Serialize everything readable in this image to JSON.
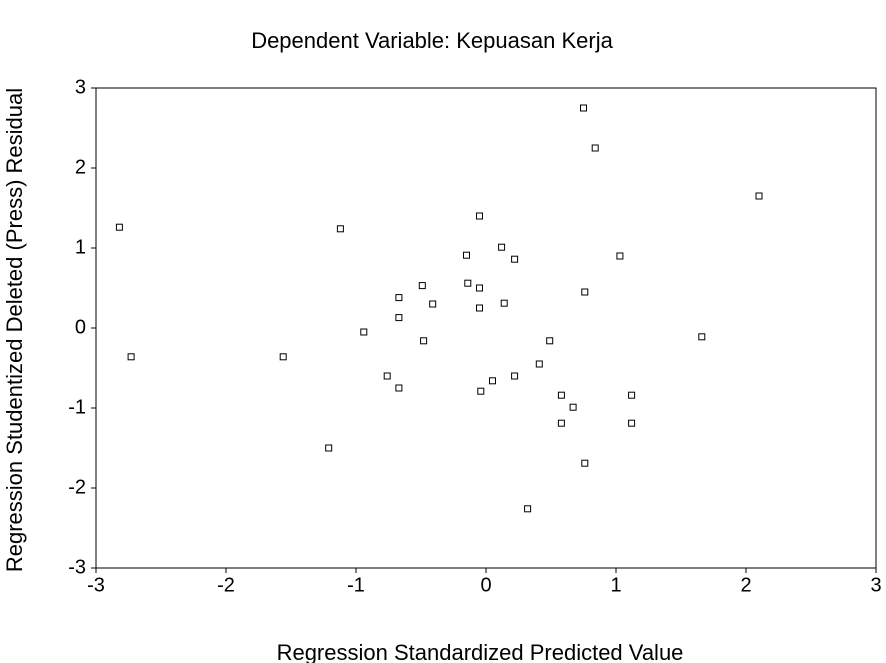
{
  "chart_data": {
    "type": "scatter",
    "title": "Dependent Variable: Kepuasan Kerja",
    "x_label": "Regression Standardized Predicted Value",
    "y_label": "Regression Studentized Deleted (Press) Residual",
    "xlim": [
      -3,
      3
    ],
    "ylim": [
      -3,
      3
    ],
    "xticks": [
      -3,
      -2,
      -1,
      0,
      1,
      2,
      3
    ],
    "yticks": [
      -3,
      -2,
      -1,
      0,
      1,
      2,
      3
    ],
    "color": "#000000",
    "x": [
      -2.82,
      -2.73,
      -1.56,
      -1.12,
      -1.21,
      -0.94,
      -0.76,
      -0.67,
      -0.67,
      -0.67,
      -0.49,
      -0.48,
      -0.41,
      -0.15,
      -0.14,
      -0.05,
      -0.05,
      -0.05,
      -0.04,
      0.05,
      0.12,
      0.14,
      0.22,
      0.22,
      0.32,
      0.41,
      0.49,
      0.58,
      0.58,
      0.67,
      0.75,
      0.76,
      0.76,
      0.84,
      1.03,
      1.12,
      1.12,
      1.66,
      2.1
    ],
    "values": [
      1.26,
      -0.36,
      -0.36,
      1.24,
      -1.5,
      -0.05,
      -0.6,
      -0.75,
      0.38,
      0.13,
      0.53,
      -0.16,
      0.3,
      0.91,
      0.56,
      1.4,
      0.5,
      0.25,
      -0.79,
      -0.66,
      1.01,
      0.31,
      0.86,
      -0.6,
      -2.26,
      -0.45,
      -0.16,
      -0.84,
      -1.19,
      -0.99,
      2.75,
      0.45,
      -1.69,
      2.25,
      0.9,
      -0.84,
      -1.19,
      -0.11,
      1.65
    ]
  }
}
